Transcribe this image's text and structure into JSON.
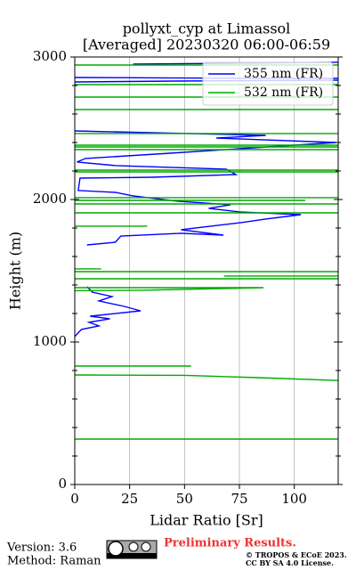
{
  "chart_data": {
    "type": "line",
    "title": "pollyxt_cyp at Limassol",
    "subtitle": "[Averaged] 20230320 06:00-06:59",
    "xlabel": "Lidar Ratio [Sr]",
    "ylabel": "Height (m)",
    "xlim": [
      0,
      120
    ],
    "ylim": [
      0,
      3000
    ],
    "xticks": [
      0,
      25,
      50,
      75,
      100
    ],
    "yticks": [
      0,
      1000,
      2000,
      3000
    ],
    "yminorticks": [
      200,
      400,
      600,
      800,
      1200,
      1400,
      1600,
      1800,
      2200,
      2400,
      2600,
      2800
    ],
    "grid": "x",
    "legend": "upper right",
    "series": [
      {
        "name": "355 nm (FR)",
        "color": "#0000ff",
        "x": [
          0,
          3,
          11,
          6.5,
          16,
          7,
          30,
          22.5,
          11,
          17,
          8,
          5.6,
          null,
          5.6,
          18.5,
          21,
          48.4,
          67.7,
          48.4,
          75.8,
          87,
          103,
          75,
          61,
          71,
          46.8,
          26.6,
          18.5,
          1.6,
          2.4,
          35.5,
          73.4,
          69,
          18.5,
          1,
          5,
          43.5,
          75,
          119,
          64.5,
          87,
          0,
          null,
          0,
          47,
          130,
          null,
          0,
          90,
          130,
          null,
          26.6,
          119,
          130
        ],
        "y": [
          1038,
          1088,
          1113,
          1138,
          1163,
          1181,
          1219,
          1250,
          1288,
          1319,
          1350,
          1388,
          null,
          1681,
          1700,
          1744,
          1763,
          1750,
          1788,
          1838,
          1863,
          1894,
          1913,
          1938,
          1963,
          1988,
          2025,
          2050,
          2063,
          2150,
          2156,
          2175,
          2213,
          2238,
          2263,
          2288,
          2325,
          2356,
          2400,
          2431,
          2450,
          2481,
          null,
          2825,
          2831,
          2838,
          null,
          2856,
          2850,
          2850,
          null,
          2950,
          2963,
          2963
        ]
      },
      {
        "name": "532 nm (FR)",
        "color": "#00aa00",
        "x": [
          0,
          130,
          null,
          0,
          53,
          null,
          0,
          50,
          83,
          130,
          null,
          0,
          86,
          null,
          0,
          30,
          86,
          null,
          0,
          130,
          null,
          68,
          130,
          null,
          0,
          12,
          null,
          0,
          130,
          null,
          0,
          33,
          null,
          0,
          130,
          null,
          0,
          130,
          null,
          0,
          105,
          null,
          0,
          130,
          null,
          0,
          130,
          null,
          0,
          130,
          null,
          0,
          130,
          null,
          0,
          130,
          null,
          0,
          130,
          null,
          0,
          130,
          null,
          0,
          130,
          null,
          0,
          130,
          null,
          0,
          130,
          null,
          0,
          130
        ],
        "y": [
          319,
          319,
          null,
          831,
          831,
          null,
          769,
          766,
          750,
          725,
          null,
          1381,
          1381,
          null,
          1360,
          1363,
          1381,
          null,
          1444,
          1444,
          null,
          1463,
          1463,
          null,
          1513,
          1513,
          null,
          1494,
          1494,
          null,
          1813,
          1813,
          null,
          1906,
          1906,
          null,
          1969,
          1969,
          null,
          1994,
          1994,
          null,
          2013,
          2013,
          null,
          2194,
          2194,
          null,
          2206,
          2206,
          null,
          2350,
          2350,
          null,
          2369,
          2369,
          null,
          2381,
          2381,
          null,
          2463,
          2463,
          null,
          2631,
          2631,
          null,
          2719,
          2719,
          null,
          2806,
          2806,
          null,
          2944,
          2944
        ]
      }
    ]
  },
  "footer": {
    "version": "Version: 3.6",
    "method": "Method: Raman",
    "preliminary": "Preliminary Results.",
    "copyright": "© TROPOS & ECoE 2023.",
    "license": "CC BY SA 4.0 License."
  }
}
